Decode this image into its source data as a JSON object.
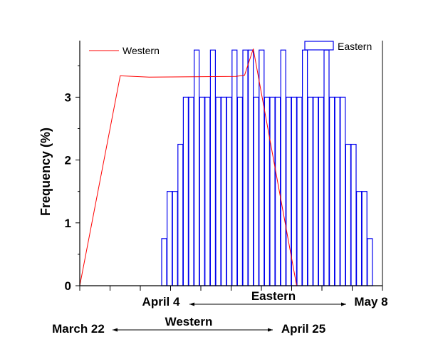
{
  "chart_data": {
    "type": "bar",
    "ylabel": "Frequency (%)",
    "ylim": [
      0,
      3.9
    ],
    "y_ticks": [
      "0",
      "1",
      "2",
      "3"
    ],
    "x_tick_count": 11,
    "grid": false,
    "legend": {
      "western_label": "Western",
      "eastern_label": "Eastern"
    },
    "series": [
      {
        "name": "Eastern",
        "kind": "bar",
        "color": "#0000ee",
        "values": [
          0.75,
          1.5,
          1.5,
          2.25,
          3.0,
          3.0,
          3.75,
          3.0,
          3.0,
          3.75,
          3.0,
          3.0,
          3.0,
          3.75,
          3.0,
          3.75,
          3.75,
          3.0,
          3.75,
          3.0,
          3.0,
          3.0,
          3.75,
          3.0,
          3.0,
          3.0,
          3.75,
          3.0,
          3.0,
          3.0,
          3.75,
          3.0,
          3.0,
          3.0,
          2.25,
          2.25,
          1.5,
          1.5,
          0.75
        ]
      },
      {
        "name": "Western",
        "kind": "line",
        "color": "#ff0000",
        "points": [
          [
            0,
            0
          ],
          [
            14,
            3.34
          ],
          [
            24,
            3.32
          ],
          [
            54,
            3.33
          ],
          [
            57,
            3.35
          ],
          [
            60,
            3.77
          ],
          [
            75,
            0
          ]
        ]
      }
    ],
    "ranges": {
      "eastern": {
        "name": "Eastern",
        "start": "April 4",
        "end": "May 8"
      },
      "western": {
        "name": "Western",
        "start": "March 22",
        "end": "April 25"
      }
    }
  }
}
